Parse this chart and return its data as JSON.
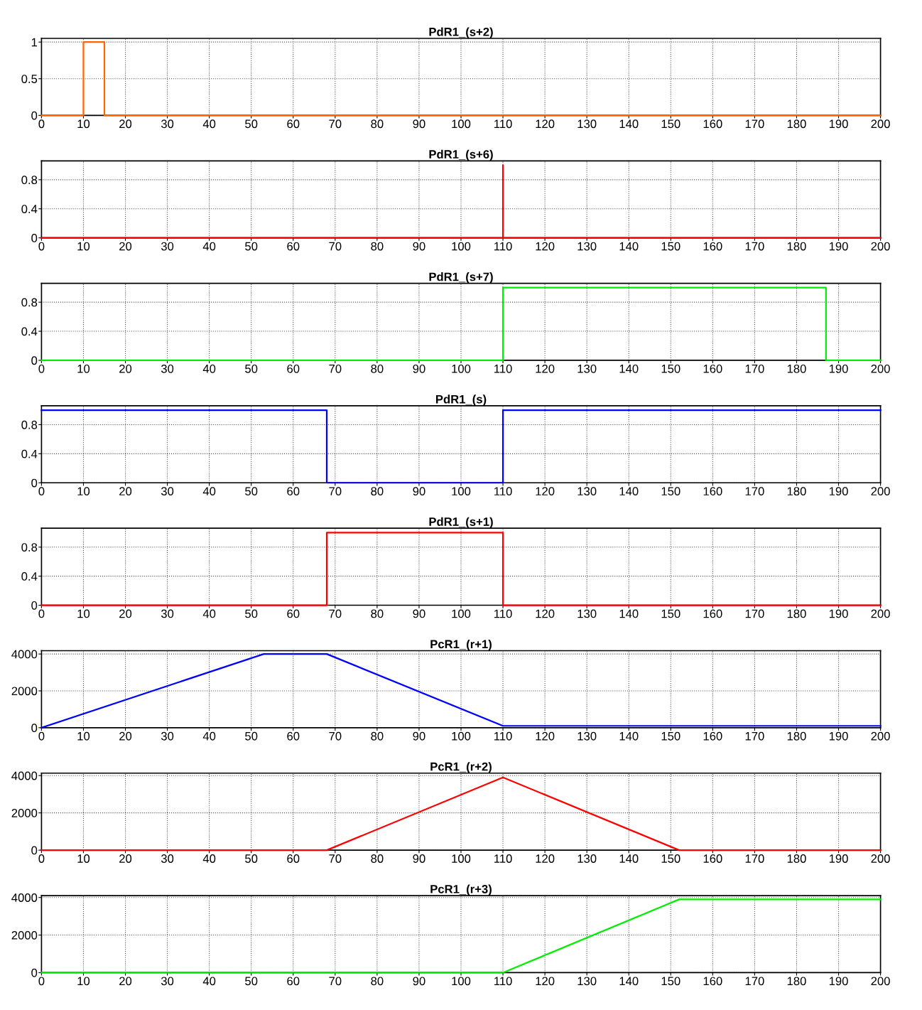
{
  "chart_data": [
    {
      "type": "line",
      "title": "PdR1_(s+2)",
      "x": [
        0,
        10,
        10,
        15,
        15,
        200
      ],
      "series": [
        {
          "color": "#ff6600",
          "values": [
            0,
            0,
            1,
            1,
            0,
            0
          ]
        }
      ],
      "xlim": [
        0,
        200
      ],
      "xticks": [
        0,
        10,
        20,
        30,
        40,
        50,
        60,
        70,
        80,
        90,
        100,
        110,
        120,
        130,
        140,
        150,
        160,
        170,
        180,
        190,
        200
      ],
      "ylim": [
        0,
        1.05
      ],
      "yticks": [
        0,
        0.5,
        1
      ],
      "grid": true
    },
    {
      "type": "line",
      "title": "PdR1_(s+6)",
      "x": [
        0,
        110,
        110,
        110,
        200
      ],
      "series": [
        {
          "color": "#ff0000",
          "values": [
            0,
            0,
            1,
            0,
            0
          ]
        }
      ],
      "xlim": [
        0,
        200
      ],
      "xticks": [
        0,
        10,
        20,
        30,
        40,
        50,
        60,
        70,
        80,
        90,
        100,
        110,
        120,
        130,
        140,
        150,
        160,
        170,
        180,
        190,
        200
      ],
      "ylim": [
        0,
        1.06
      ],
      "yticks": [
        0,
        0.4,
        0.8
      ],
      "grid": true
    },
    {
      "type": "line",
      "title": "PdR1_(s+7)",
      "x": [
        0,
        110,
        110,
        187,
        187,
        200
      ],
      "series": [
        {
          "color": "#00ee00",
          "values": [
            0,
            0,
            1,
            1,
            0,
            0
          ]
        }
      ],
      "xlim": [
        0,
        200
      ],
      "xticks": [
        0,
        10,
        20,
        30,
        40,
        50,
        60,
        70,
        80,
        90,
        100,
        110,
        120,
        130,
        140,
        150,
        160,
        170,
        180,
        190,
        200
      ],
      "ylim": [
        0,
        1.06
      ],
      "yticks": [
        0,
        0.4,
        0.8
      ],
      "grid": true
    },
    {
      "type": "line",
      "title": "PdR1_(s)",
      "x": [
        0,
        68,
        68,
        110,
        110,
        200
      ],
      "series": [
        {
          "color": "#0000ff",
          "values": [
            1,
            1,
            0,
            0,
            1,
            1
          ]
        }
      ],
      "xlim": [
        0,
        200
      ],
      "xticks": [
        0,
        10,
        20,
        30,
        40,
        50,
        60,
        70,
        80,
        90,
        100,
        110,
        120,
        130,
        140,
        150,
        160,
        170,
        180,
        190,
        200
      ],
      "ylim": [
        0,
        1.06
      ],
      "yticks": [
        0,
        0.4,
        0.8
      ],
      "grid": true
    },
    {
      "type": "line",
      "title": "PdR1_(s+1)",
      "x": [
        0,
        68,
        68,
        110,
        110,
        200
      ],
      "series": [
        {
          "color": "#ff0000",
          "values": [
            0,
            0,
            1,
            1,
            0,
            0
          ]
        }
      ],
      "xlim": [
        0,
        200
      ],
      "xticks": [
        0,
        10,
        20,
        30,
        40,
        50,
        60,
        70,
        80,
        90,
        100,
        110,
        120,
        130,
        140,
        150,
        160,
        170,
        180,
        190,
        200
      ],
      "ylim": [
        0,
        1.06
      ],
      "yticks": [
        0,
        0.4,
        0.8
      ],
      "grid": true
    },
    {
      "type": "line",
      "title": "PcR1_(r+1)",
      "x": [
        0,
        53,
        68,
        110,
        200
      ],
      "series": [
        {
          "color": "#0000ff",
          "values": [
            0,
            4000,
            4000,
            100,
            100
          ]
        }
      ],
      "xlim": [
        0,
        200
      ],
      "xticks": [
        0,
        10,
        20,
        30,
        40,
        50,
        60,
        70,
        80,
        90,
        100,
        110,
        120,
        130,
        140,
        150,
        160,
        170,
        180,
        190,
        200
      ],
      "ylim": [
        0,
        4180
      ],
      "yticks": [
        0,
        2000,
        4000
      ],
      "grid": true
    },
    {
      "type": "line",
      "title": "PcR1_(r+2)",
      "x": [
        0,
        68,
        110,
        152,
        200
      ],
      "series": [
        {
          "color": "#ff0000",
          "values": [
            0,
            0,
            3900,
            0,
            0
          ]
        }
      ],
      "xlim": [
        0,
        200
      ],
      "xticks": [
        0,
        10,
        20,
        30,
        40,
        50,
        60,
        70,
        80,
        90,
        100,
        110,
        120,
        130,
        140,
        150,
        160,
        170,
        180,
        190,
        200
      ],
      "ylim": [
        0,
        4130
      ],
      "yticks": [
        0,
        2000,
        4000
      ],
      "grid": true
    },
    {
      "type": "line",
      "title": "PcR1_(r+3)",
      "x": [
        0,
        110,
        152,
        200
      ],
      "series": [
        {
          "color": "#00ee00",
          "values": [
            0,
            0,
            3900,
            3900
          ]
        }
      ],
      "xlim": [
        0,
        200
      ],
      "xticks": [
        0,
        10,
        20,
        30,
        40,
        50,
        60,
        70,
        80,
        90,
        100,
        110,
        120,
        130,
        140,
        150,
        160,
        170,
        180,
        190,
        200
      ],
      "ylim": [
        0,
        4100
      ],
      "yticks": [
        0,
        2000,
        4000
      ],
      "grid": true
    }
  ]
}
